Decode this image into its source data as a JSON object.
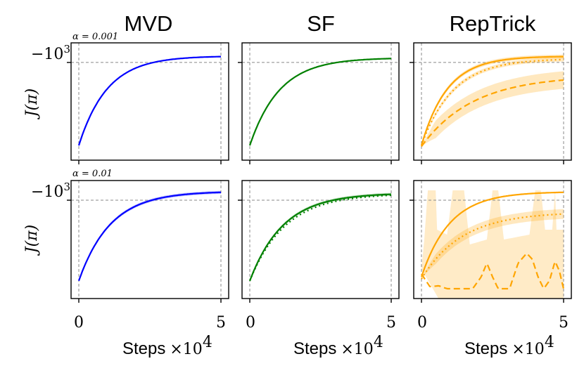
{
  "chart_data": {
    "type": "line",
    "layout": "grid 2x3 of panels",
    "columns": [
      "MVD",
      "SF",
      "RepTrick"
    ],
    "rows": [
      {
        "alpha_label": "α = 0.001"
      },
      {
        "alpha_label": "α = 0.01"
      }
    ],
    "ylabel": "J(π)",
    "ytick_label": "−10",
    "ytick_exponent": "3",
    "xlabel": "Steps",
    "xlabel_multiplier": "×10",
    "xlabel_exponent": "4",
    "xtick_labels": [
      "0",
      "5"
    ],
    "xlim": [
      0,
      5
    ],
    "ylim": [
      0,
      1
    ],
    "y_reference": 0.9,
    "x_reference": 5,
    "colors": {
      "MVD": "#0000ff",
      "SF": "#008000",
      "RepTrick": "#ffa500",
      "reference": "#888888"
    },
    "panels": [
      {
        "row": 0,
        "col": "MVD",
        "series": [
          {
            "style": "solid",
            "start": 0.05,
            "end": 0.96,
            "rate": 1.0,
            "band": 0.0
          }
        ]
      },
      {
        "row": 0,
        "col": "SF",
        "series": [
          {
            "style": "solid",
            "start": 0.05,
            "end": 0.94,
            "rate": 0.95,
            "band": 0.0
          }
        ]
      },
      {
        "row": 0,
        "col": "RepTrick",
        "series": [
          {
            "style": "solid",
            "start": 0.05,
            "end": 0.96,
            "rate": 1.1,
            "band": 0.02
          },
          {
            "style": "dotted",
            "start": 0.05,
            "end": 0.93,
            "rate": 0.9,
            "band": 0.02
          },
          {
            "style": "dashed",
            "start": 0.04,
            "end": 0.72,
            "rate": 0.55,
            "band": 0.09
          }
        ]
      },
      {
        "row": 1,
        "col": "MVD",
        "series": [
          {
            "style": "solid",
            "start": 0.08,
            "end": 0.98,
            "rate": 0.9,
            "band": 0.015
          }
        ]
      },
      {
        "row": 1,
        "col": "SF",
        "series": [
          {
            "style": "solid",
            "start": 0.08,
            "end": 0.96,
            "rate": 0.85,
            "band": 0.015
          },
          {
            "style": "dotted",
            "start": 0.08,
            "end": 0.95,
            "rate": 0.8,
            "band": 0.0
          }
        ]
      },
      {
        "row": 1,
        "col": "RepTrick",
        "series": [
          {
            "style": "solid",
            "start": 0.12,
            "end": 0.98,
            "rate": 1.0,
            "band": 0.0
          },
          {
            "style": "dotted",
            "start": 0.1,
            "end": 0.76,
            "rate": 0.7,
            "band": 0.05
          },
          {
            "style": "dashed",
            "erratic": true,
            "points": [
              [
                0,
                0.15
              ],
              [
                0.3,
                0.02
              ],
              [
                0.6,
                0.03
              ],
              [
                0.9,
                0.0
              ],
              [
                1.3,
                0.0
              ],
              [
                1.8,
                0.0
              ],
              [
                2.1,
                0.12
              ],
              [
                2.3,
                0.26
              ],
              [
                2.5,
                0.12
              ],
              [
                2.7,
                0.0
              ],
              [
                3.1,
                0.0
              ],
              [
                3.4,
                0.26
              ],
              [
                3.7,
                0.36
              ],
              [
                3.9,
                0.3
              ],
              [
                4.1,
                0.12
              ],
              [
                4.3,
                0.0
              ],
              [
                4.5,
                0.08
              ],
              [
                4.7,
                0.28
              ],
              [
                4.85,
                0.18
              ],
              [
                5,
                0.0
              ]
            ]
          }
        ],
        "chaos_band": {
          "lower": [
            [
              0,
              0.3
            ],
            [
              0.6,
              0.0
            ],
            [
              5,
              0.0
            ]
          ],
          "upper": [
            [
              0,
              0.2
            ],
            [
              0.1,
              0.5
            ],
            [
              0.22,
              1.0
            ],
            [
              0.5,
              1.0
            ],
            [
              0.55,
              0.6
            ],
            [
              0.9,
              0.55
            ],
            [
              1.1,
              1.0
            ],
            [
              1.5,
              1.0
            ],
            [
              1.7,
              0.45
            ],
            [
              2.3,
              0.5
            ],
            [
              2.5,
              1.0
            ],
            [
              2.7,
              1.0
            ],
            [
              2.9,
              0.5
            ],
            [
              3.8,
              0.55
            ],
            [
              4.0,
              1.0
            ],
            [
              4.2,
              1.0
            ],
            [
              4.35,
              0.6
            ],
            [
              4.6,
              0.6
            ],
            [
              4.7,
              1.0
            ],
            [
              4.75,
              0.6
            ],
            [
              5,
              0.6
            ]
          ],
          "upper_fill_top": 1.0
        }
      }
    ]
  }
}
